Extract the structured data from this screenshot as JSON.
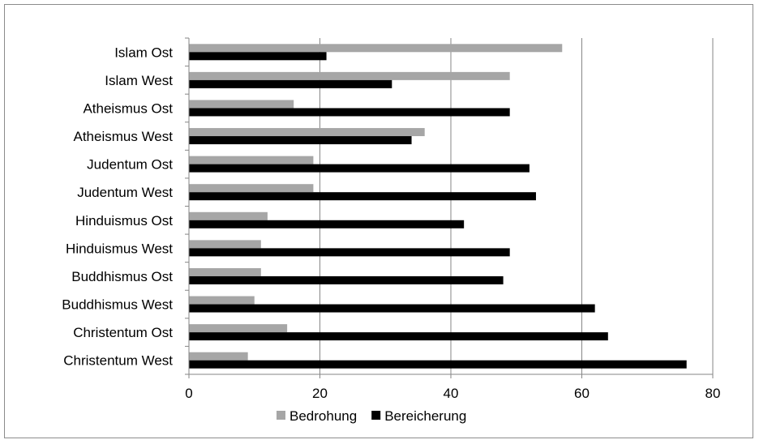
{
  "chart_data": {
    "type": "bar",
    "orientation": "horizontal",
    "categories": [
      "Islam Ost",
      "Islam West",
      "Atheismus Ost",
      "Atheismus West",
      "Judentum Ost",
      "Judentum West",
      "Hinduismus Ost",
      "Hinduismus West",
      "Buddhismus Ost",
      "Buddhismus West",
      "Christentum Ost",
      "Christentum West"
    ],
    "series": [
      {
        "name": "Bedrohung",
        "color": "#a6a6a6",
        "values": [
          57,
          49,
          16,
          36,
          19,
          19,
          12,
          11,
          11,
          10,
          15,
          9
        ]
      },
      {
        "name": "Bereicherung",
        "color": "#000000",
        "values": [
          21,
          31,
          49,
          34,
          52,
          53,
          42,
          49,
          48,
          62,
          64,
          76
        ]
      }
    ],
    "xlim": [
      0,
      80
    ],
    "xticks": [
      0,
      20,
      40,
      60,
      80
    ],
    "grid": "vertical",
    "legend_position": "bottom",
    "title": "",
    "xlabel": "",
    "ylabel": ""
  }
}
